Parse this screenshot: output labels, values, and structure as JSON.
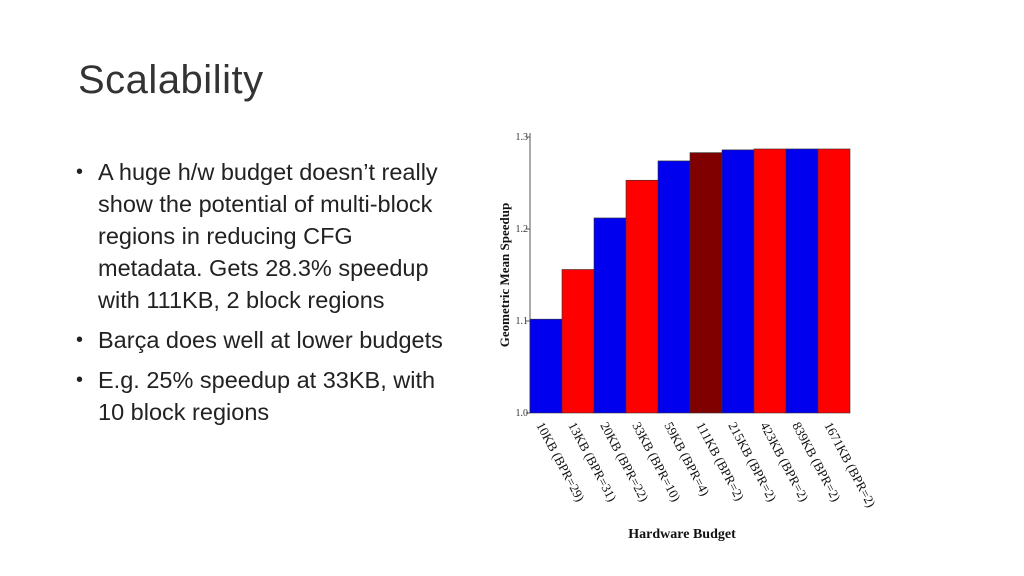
{
  "slide": {
    "title": "Scalability",
    "bullets": [
      "A huge h/w budget doesn’t really show the potential of multi-block regions in reducing CFG metadata. Gets 28.3% speedup with 111KB, 2 block regions",
      "Barça does well at lower budgets",
      "E.g. 25% speedup at 33KB, with 10 block regions"
    ]
  },
  "chart_data": {
    "type": "bar",
    "title": "",
    "xlabel": "Hardware Budget",
    "ylabel": "Geometric Mean Speedup",
    "ylim": [
      1.0,
      1.3
    ],
    "yticks": [
      "1.0",
      "1.1",
      "1.2",
      "1.3"
    ],
    "grid": false,
    "categories": [
      "10KB (BPR=29)",
      "13KB (BPR=31)",
      "20KB (BPR=22)",
      "33KB (BPR=10)",
      "59KB (BPR=4)",
      "111KB (BPR=2)",
      "215KB (BPR=2)",
      "423KB (BPR=2)",
      "839KB (BPR=2)",
      "1671KB (BPR=2)"
    ],
    "values": [
      1.102,
      1.156,
      1.212,
      1.253,
      1.274,
      1.283,
      1.286,
      1.287,
      1.287,
      1.287
    ],
    "bar_colors": [
      "#0000ee",
      "#ff0000",
      "#0000ee",
      "#ff0000",
      "#0000ee",
      "#800000",
      "#0000ee",
      "#ff0000",
      "#0000ee",
      "#ff0000"
    ]
  }
}
